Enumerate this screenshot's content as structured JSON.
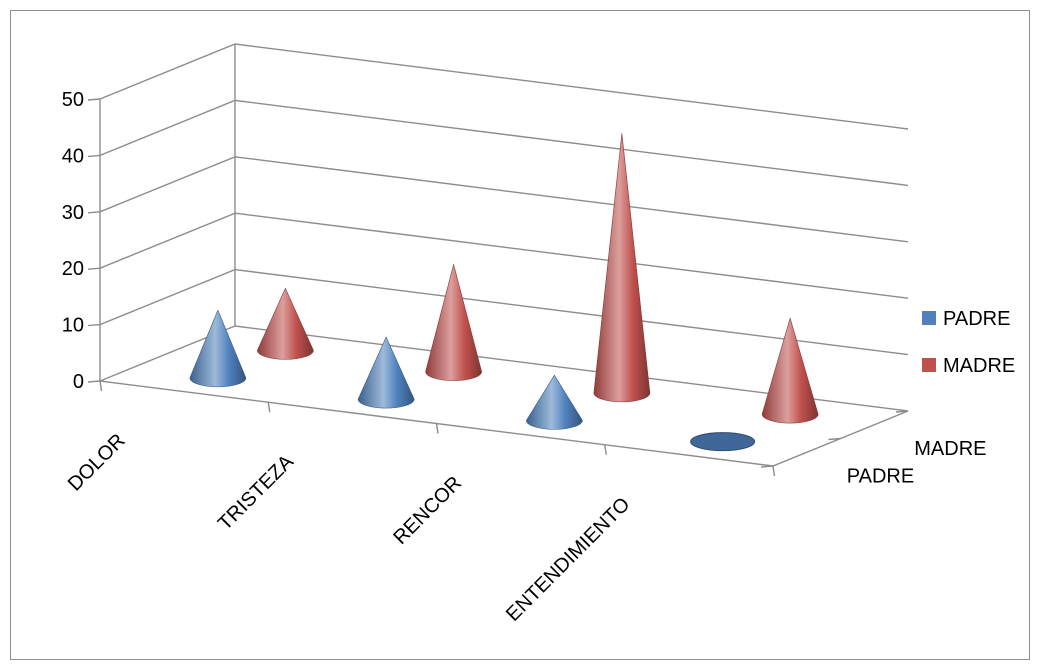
{
  "chart_data": {
    "type": "bar",
    "bar_shape": "cone",
    "view": "3d",
    "categories": [
      "DOLOR",
      "TRISTEZA",
      "RENCOR",
      "ENTENDIMIENTO"
    ],
    "depth_categories": [
      "PADRE",
      "MADRE"
    ],
    "series": [
      {
        "name": "PADRE",
        "color": "#4f81bd",
        "values": [
          12,
          11,
          8,
          0
        ]
      },
      {
        "name": "MADRE",
        "color": "#c0504d",
        "values": [
          11,
          19,
          46,
          17
        ]
      }
    ],
    "yticks": [
      0,
      10,
      20,
      30,
      40,
      50
    ],
    "ylim": [
      0,
      50
    ],
    "grid": true,
    "legend": "right"
  }
}
